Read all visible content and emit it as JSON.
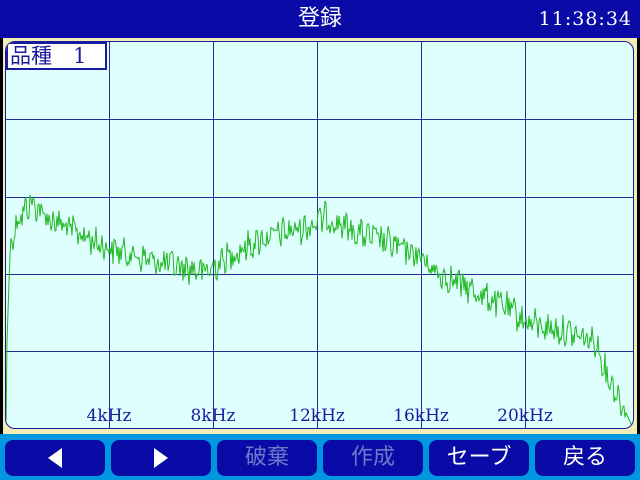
{
  "header": {
    "title": "登録",
    "clock": "11:38:34"
  },
  "plot": {
    "product_label": "品種　1",
    "x_ticks": [
      "4kHz",
      "8kHz",
      "12kHz",
      "16kHz",
      "20kHz"
    ]
  },
  "toolbar": {
    "prev_icon": "triangle-left-icon",
    "next_icon": "triangle-right-icon",
    "discard_label": "破棄",
    "create_label": "作成",
    "save_label": "セーブ",
    "back_label": "戻る"
  },
  "colors": {
    "title_bar": "#0a0aa6",
    "plot_background": "#dffefe",
    "grid": "#2a2a9a",
    "trace": "#1fb81f",
    "toolbar_background": "#0097e0",
    "button": "#0a0aa6",
    "button_disabled_text": "#6d78c8"
  }
}
